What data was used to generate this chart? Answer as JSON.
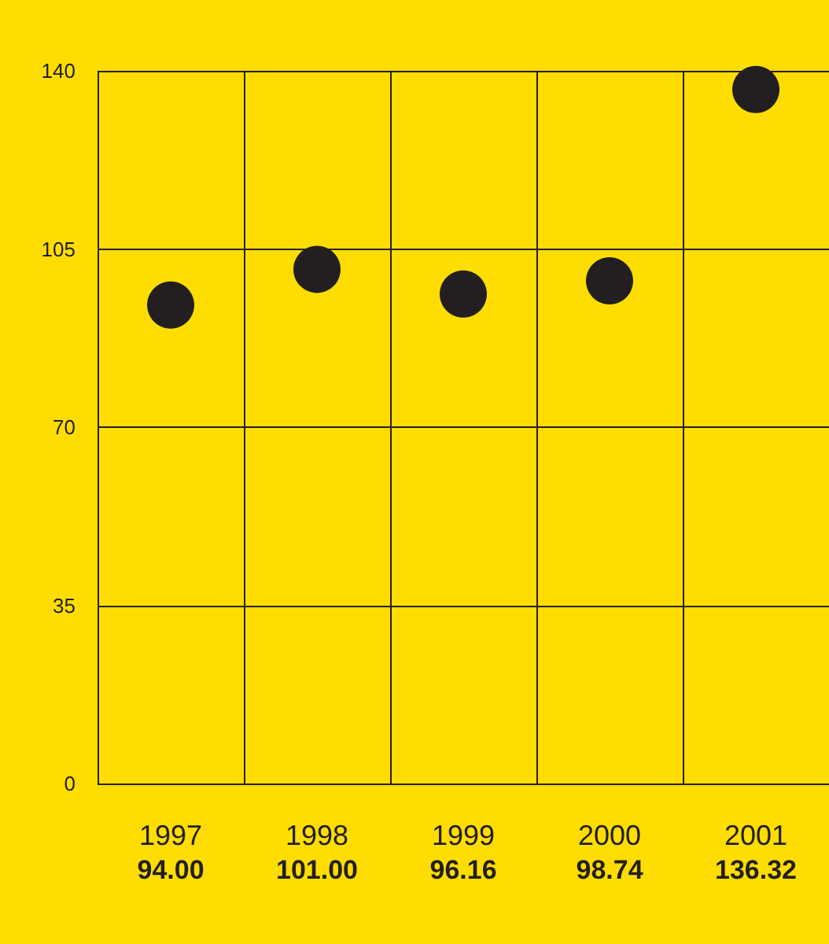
{
  "chart_data": {
    "type": "scatter",
    "categories": [
      "1997",
      "1998",
      "1999",
      "2000",
      "2001"
    ],
    "series": [
      {
        "color": "#231f20",
        "values": [
          94.0,
          101.0,
          96.16,
          98.74,
          136.32
        ],
        "value_labels": [
          "94.00",
          "101.00",
          "96.16",
          "98.74",
          "136.32"
        ]
      }
    ],
    "ylim": [
      0,
      140
    ],
    "yticks": [
      0,
      35,
      70,
      105,
      140
    ],
    "grid": true,
    "marker": "circle"
  }
}
